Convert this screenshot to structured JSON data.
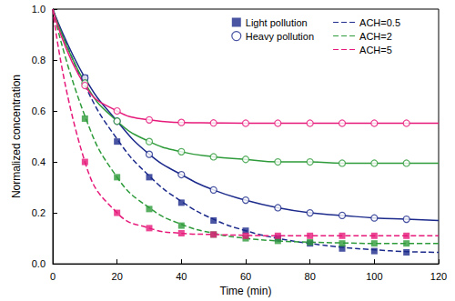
{
  "chart_data": {
    "type": "line",
    "x_label": "Time (min)",
    "y_label": "Normalized concentration",
    "xlim": [
      0,
      120
    ],
    "xticks": [
      0,
      20,
      40,
      60,
      80,
      100,
      120
    ],
    "ylim": [
      0,
      1
    ],
    "yticks": [
      {
        "value": 0,
        "label": "0.0"
      },
      0.2,
      0.4,
      0.6,
      0.8,
      {
        "value": 1,
        "label": "1.0"
      }
    ],
    "grid": false,
    "legend": "upper right",
    "fit_x": [
      0,
      10,
      20,
      30,
      40,
      50,
      60,
      70,
      80,
      90,
      100,
      110,
      120
    ],
    "x": [
      10,
      20,
      30,
      40,
      50,
      60,
      70,
      80,
      90,
      100,
      110
    ],
    "series": [
      {
        "name": "Light pollution",
        "group": "ACH=0.5",
        "color": "#1c2b8b",
        "marker": "square",
        "line_style": "dashed",
        "values": [
          0.73,
          0.48,
          0.34,
          0.24,
          0.17,
          0.13,
          0.1,
          0.08,
          0.06,
          0.05,
          0.045
        ],
        "fit_values": [
          1.0,
          0.7,
          0.49,
          0.345,
          0.245,
          0.175,
          0.13,
          0.1,
          0.08,
          0.065,
          0.055,
          0.048,
          0.045
        ]
      },
      {
        "name": "Light pollution",
        "group": "ACH=2",
        "color": "#2e9b3a",
        "marker": "square",
        "line_style": "dashed",
        "values": [
          0.57,
          0.34,
          0.215,
          0.15,
          0.115,
          0.1,
          0.09,
          0.085,
          0.08,
          0.08,
          0.08
        ],
        "fit_values": [
          1.0,
          0.58,
          0.34,
          0.22,
          0.155,
          0.12,
          0.1,
          0.09,
          0.085,
          0.082,
          0.08,
          0.08,
          0.08
        ]
      },
      {
        "name": "Light pollution",
        "group": "ACH=5",
        "color": "#e6197a",
        "marker": "square",
        "line_style": "dashed",
        "values": [
          0.4,
          0.2,
          0.14,
          0.12,
          0.115,
          0.11,
          0.11,
          0.11,
          0.11,
          0.11,
          0.11
        ],
        "fit_values": [
          1.0,
          0.4,
          0.2,
          0.14,
          0.12,
          0.115,
          0.112,
          0.11,
          0.11,
          0.11,
          0.11,
          0.11,
          0.11
        ]
      },
      {
        "name": "Heavy pollution",
        "group": "ACH=0.5",
        "color": "#1c2b8b",
        "marker": "open_circle",
        "line_style": "solid",
        "values": [
          0.73,
          0.56,
          0.43,
          0.35,
          0.29,
          0.25,
          0.22,
          0.2,
          0.19,
          0.18,
          0.175
        ],
        "fit_values": [
          1.0,
          0.73,
          0.56,
          0.43,
          0.35,
          0.29,
          0.25,
          0.22,
          0.2,
          0.19,
          0.18,
          0.175,
          0.17
        ]
      },
      {
        "name": "Heavy pollution",
        "group": "ACH=2",
        "color": "#2e9b3a",
        "marker": "open_circle",
        "line_style": "solid",
        "values": [
          0.71,
          0.56,
          0.48,
          0.44,
          0.42,
          0.41,
          0.4,
          0.4,
          0.395,
          0.395,
          0.395
        ],
        "fit_values": [
          1.0,
          0.71,
          0.56,
          0.48,
          0.44,
          0.42,
          0.41,
          0.4,
          0.4,
          0.395,
          0.395,
          0.395,
          0.395
        ]
      },
      {
        "name": "Heavy pollution",
        "group": "ACH=5",
        "color": "#e6197a",
        "marker": "open_circle",
        "line_style": "solid",
        "values": [
          0.7,
          0.6,
          0.565,
          0.555,
          0.553,
          0.552,
          0.552,
          0.552,
          0.552,
          0.552,
          0.552
        ],
        "fit_values": [
          1.0,
          0.7,
          0.6,
          0.565,
          0.555,
          0.553,
          0.552,
          0.552,
          0.552,
          0.552,
          0.552,
          0.552,
          0.552
        ]
      }
    ]
  }
}
